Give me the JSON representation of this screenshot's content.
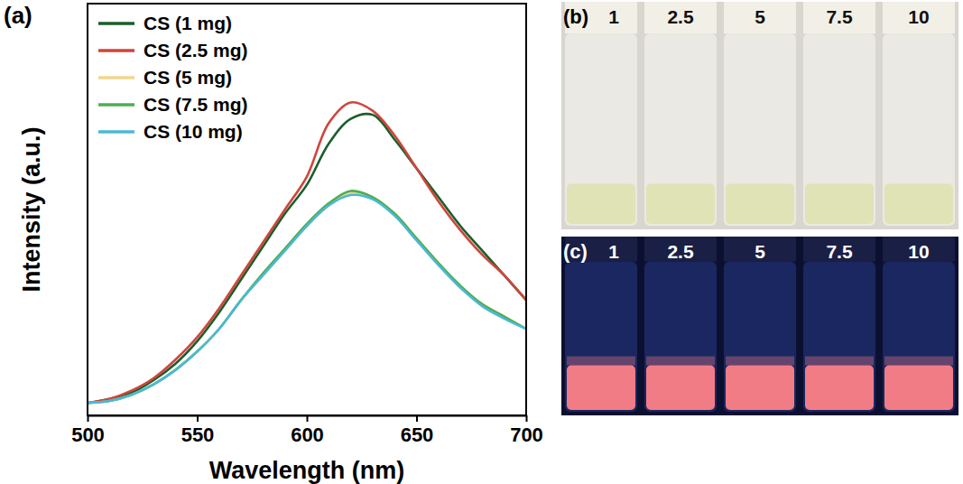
{
  "chart_data": {
    "type": "line",
    "x_label": "Wavelength (nm)",
    "y_label": "Intensity (a.u.)",
    "x": [
      500,
      510,
      520,
      530,
      540,
      550,
      560,
      570,
      580,
      590,
      600,
      610,
      620,
      630,
      640,
      650,
      660,
      670,
      680,
      690,
      700
    ],
    "series": [
      {
        "name": "CS (1 mg)",
        "color": "#1b5e2b",
        "values": [
          3,
          4,
          5.5,
          8.5,
          12.5,
          18,
          25,
          33,
          41,
          49,
          56,
          66,
          72,
          73,
          67,
          60,
          53,
          46,
          40,
          34,
          28
        ]
      },
      {
        "name": "CS (2.5 mg)",
        "color": "#d0453b",
        "values": [
          3,
          4,
          6,
          9,
          13.5,
          19,
          26,
          34,
          42,
          50,
          58,
          71,
          76,
          74,
          68,
          60,
          52,
          45,
          39,
          34,
          28
        ]
      },
      {
        "name": "CS (5 mg)",
        "color": "#f3d58c",
        "values": [
          3,
          3.5,
          5,
          7.5,
          11,
          15.5,
          21,
          28,
          34,
          40,
          46,
          51,
          54,
          53,
          49,
          43,
          37,
          31,
          27,
          24,
          21
        ]
      },
      {
        "name": "CS (7.5 mg)",
        "color": "#4caf50",
        "values": [
          3,
          3.5,
          5,
          7.5,
          11,
          15.5,
          21,
          28,
          34.5,
          40.5,
          46.5,
          51.5,
          54.5,
          53,
          49,
          43,
          37,
          31.5,
          27,
          24,
          21
        ]
      },
      {
        "name": "CS (10 mg)",
        "color": "#4cb8d6",
        "values": [
          3,
          3.5,
          5,
          7.5,
          11,
          15.5,
          21,
          28,
          34,
          40,
          46,
          51,
          53.5,
          52.5,
          48.5,
          42.5,
          36.5,
          31,
          26.5,
          23.5,
          21
        ]
      }
    ],
    "xlim": [
      500,
      700
    ],
    "xticks": [
      500,
      550,
      600,
      650,
      700
    ],
    "ylim": [
      0,
      100
    ],
    "tick_labels": "x",
    "legend": "upper left"
  },
  "panel_label": "(a)",
  "photos": [
    {
      "label": "(b)",
      "captions": [
        "1",
        "2.5",
        "5",
        "7.5",
        "10"
      ]
    },
    {
      "label": "(c)",
      "captions": [
        "1",
        "2.5",
        "5",
        "7.5",
        "10"
      ]
    }
  ]
}
